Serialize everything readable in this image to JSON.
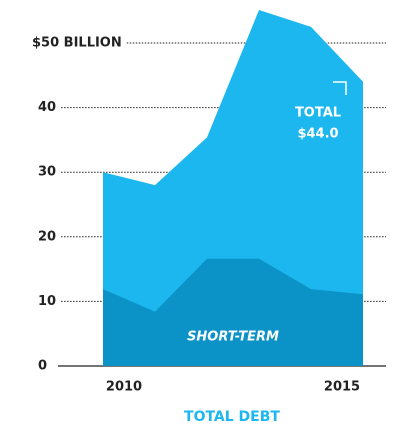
{
  "chart_data": {
    "type": "area",
    "categories": [
      "2010",
      null,
      null,
      null,
      null,
      "2015"
    ],
    "series": [
      {
        "name": "TOTAL",
        "color": "#1cb7ee",
        "values": [
          30.0,
          28.0,
          35.4,
          55.1,
          52.5,
          44.0
        ],
        "value_labels": [
          null,
          null,
          null,
          null,
          null,
          "$44.0"
        ]
      },
      {
        "name": "SHORT-TERM",
        "color": "#0b92c6",
        "values": [
          11.9,
          8.4,
          16.6,
          16.6,
          11.9,
          11.1
        ]
      }
    ],
    "ylim": [
      0,
      50
    ],
    "yticks": [
      0,
      10,
      20,
      30,
      40,
      {
        "value": 50,
        "label": "$50 BILLION"
      }
    ],
    "x_label": "TOTAL DEBT",
    "grid": true
  }
}
